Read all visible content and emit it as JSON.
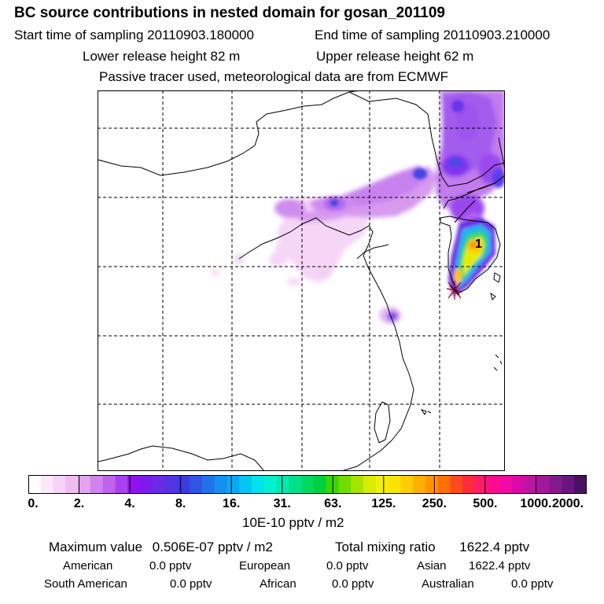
{
  "header": {
    "title": "BC  source contributions in nested domain for gosan_201109",
    "start_time": "Start time of sampling 20110903.180000",
    "end_time": "End time of sampling 20110903.210000",
    "lower_release": "Lower release height   82 m",
    "upper_release": "Upper release height   62 m",
    "tracer_note": "Passive tracer used, meteorological data are from ECMWF"
  },
  "map": {
    "marker_label": "1"
  },
  "colorbar": {
    "colors": [
      "#ffffff",
      "#fbe8fb",
      "#f6d2f6",
      "#f0bcf0",
      "#e7a4ee",
      "#d183ee",
      "#bf62ee",
      "#ad40ee",
      "#9410ee",
      "#7b1bee",
      "#6a2ae8",
      "#5533e2",
      "#3f3ae0",
      "#2f55e8",
      "#2272ee",
      "#148ff0",
      "#0aaaf2",
      "#00c8f0",
      "#00e3ea",
      "#00f0d0",
      "#00eab0",
      "#00e28a",
      "#00d860",
      "#00d040",
      "#3ad600",
      "#70dc00",
      "#a8e400",
      "#d8ec00",
      "#f4f000",
      "#ffe400",
      "#ffcc00",
      "#ffb000",
      "#ff9400",
      "#ff7200",
      "#ff4a1e",
      "#ff2a3c",
      "#ff1a6a",
      "#ff0a90",
      "#f20aa4",
      "#d80aa8",
      "#bc14a4",
      "#a0189c",
      "#841a90",
      "#681680",
      "#4a1060"
    ],
    "ticks": [
      "0.",
      "2.",
      "4.",
      "8.",
      "16.",
      "31.",
      "63.",
      "125.",
      "250.",
      "500.",
      "1000.",
      "2000."
    ],
    "units": "10E-10 pptv / m2"
  },
  "summary": {
    "max_label": "Maximum value",
    "max_value": "0.506E-07 pptv / m2",
    "total_label": "Total mixing ratio",
    "total_value": "1622.4 pptv",
    "regions": [
      {
        "name": "American",
        "value": "0.0 pptv"
      },
      {
        "name": "European",
        "value": "0.0 pptv"
      },
      {
        "name": "Asian",
        "value": "1622.4 pptv"
      },
      {
        "name": "South American",
        "value": "0.0 pptv"
      },
      {
        "name": "African",
        "value": "0.0 pptv"
      },
      {
        "name": "Australian",
        "value": "0.0 pptv"
      }
    ]
  }
}
